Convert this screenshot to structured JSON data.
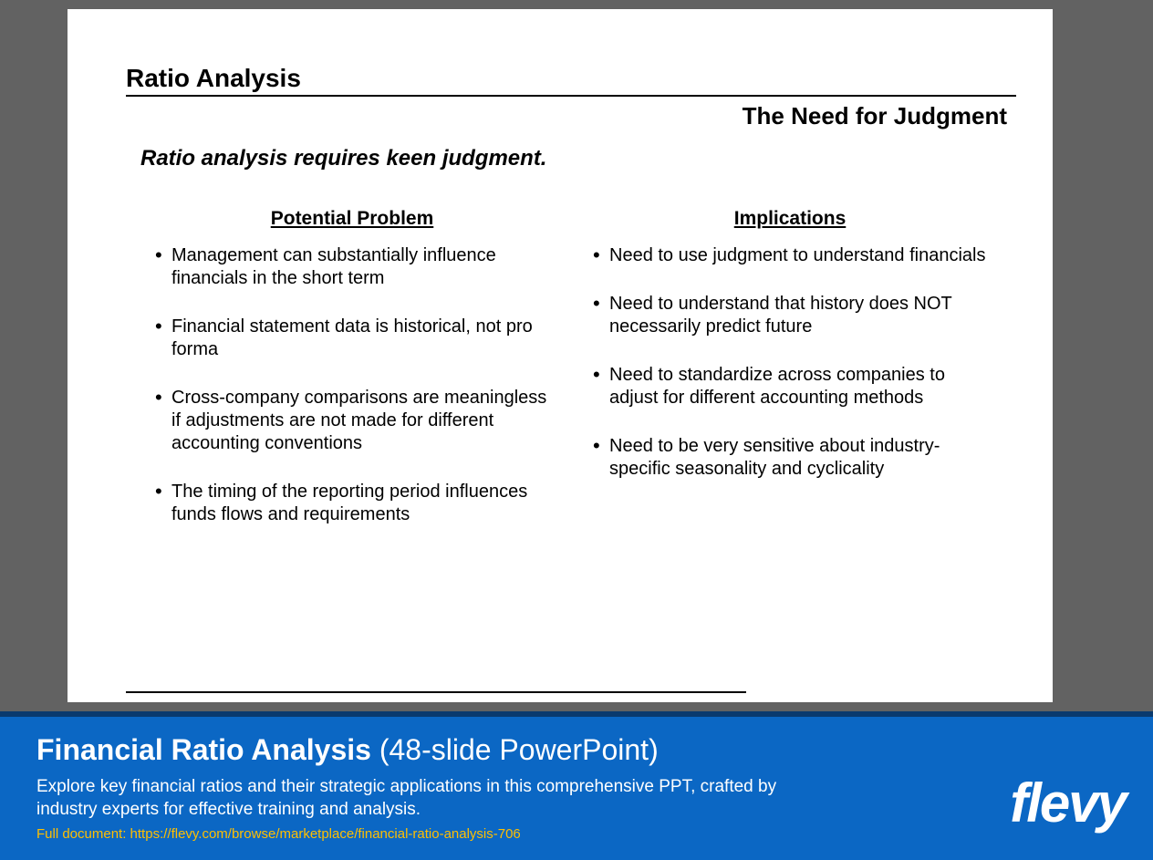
{
  "colors": {
    "page_bg": "#626262",
    "slide_bg": "#ffffff",
    "text": "#000000",
    "banner_bg": "#0b67c4",
    "banner_border": "#0a3a6e",
    "banner_text": "#ffffff",
    "link": "#ffbf00",
    "logo": "#ffffff"
  },
  "slide": {
    "title": "Ratio Analysis",
    "subtitle": "The Need for Judgment",
    "lead": "Ratio analysis requires keen judgment.",
    "columns": [
      {
        "heading": "Potential Problem",
        "items": [
          "Management can substantially influence financials in the short term",
          "Financial statement data is historical, not pro forma",
          "Cross-company comparisons are meaningless if adjustments are not made for different accounting conventions",
          "The timing of the reporting period influences funds flows and requirements"
        ]
      },
      {
        "heading": "Implications",
        "items": [
          "Need to use judgment to understand financials",
          "Need to understand that history does NOT necessarily predict future",
          "Need to standardize across companies to adjust for different accounting methods",
          "Need to be very sensitive about industry-specific seasonality and cyclicality"
        ]
      }
    ]
  },
  "banner": {
    "title_bold": "Financial Ratio Analysis",
    "title_rest": " (48-slide PowerPoint)",
    "description": "Explore key financial ratios and their strategic applications in this comprehensive PPT, crafted by industry experts for effective training and analysis.",
    "full_doc_label": "Full document: https://flevy.com/browse/marketplace/financial-ratio-analysis-706",
    "logo": "flevy"
  }
}
